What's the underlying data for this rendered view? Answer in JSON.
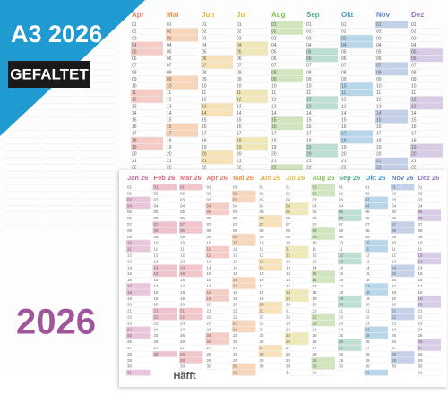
{
  "badge": {
    "title": "A3 2026",
    "label": "GEFALTET"
  },
  "back_calendar": {
    "months": [
      {
        "name": "Apr",
        "color": "#e6796a"
      },
      {
        "name": "Mai",
        "color": "#ee9446"
      },
      {
        "name": "Jun",
        "color": "#e9b449"
      },
      {
        "name": "Jul",
        "color": "#d7c23e"
      },
      {
        "name": "Aug",
        "color": "#86bd57"
      },
      {
        "name": "Sep",
        "color": "#52ad88"
      },
      {
        "name": "Okt",
        "color": "#4796c7"
      },
      {
        "name": "Nov",
        "color": "#6685c6"
      },
      {
        "name": "Dez",
        "color": "#9879bf"
      }
    ]
  },
  "front_calendar": {
    "months": [
      {
        "name": "Jan 26",
        "color": "#c46aa0"
      },
      {
        "name": "Feb 26",
        "color": "#d2607c"
      },
      {
        "name": "Mär 26",
        "color": "#de6a76"
      },
      {
        "name": "Apr 26",
        "color": "#e6796a"
      },
      {
        "name": "Mai 26",
        "color": "#ee9446"
      },
      {
        "name": "Jun 26",
        "color": "#e9b449"
      },
      {
        "name": "Jul 26",
        "color": "#d7c23e"
      },
      {
        "name": "Aug 26",
        "color": "#86bd57"
      },
      {
        "name": "Sep 26",
        "color": "#52ad88"
      },
      {
        "name": "Okt 26",
        "color": "#4796c7"
      },
      {
        "name": "Nov 26",
        "color": "#6685c6"
      },
      {
        "name": "Dez 26",
        "color": "#9879bf"
      }
    ]
  },
  "days": [
    "01",
    "02",
    "03",
    "04",
    "05",
    "06",
    "07",
    "08",
    "09",
    "10",
    "11",
    "12",
    "13",
    "14",
    "15",
    "16",
    "17",
    "18",
    "19",
    "20",
    "21",
    "22",
    "23",
    "24",
    "25",
    "26",
    "27",
    "28",
    "29",
    "30",
    "31"
  ],
  "year": "2026",
  "brand": "Häfft"
}
